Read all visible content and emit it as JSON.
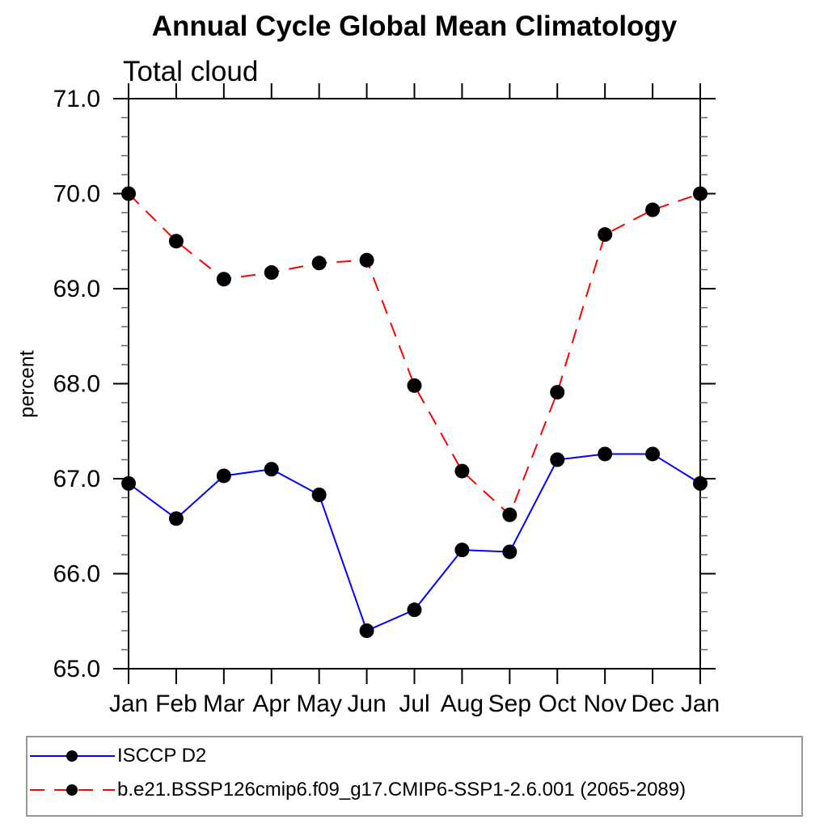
{
  "chart_data": {
    "type": "line",
    "title": "Annual Cycle Global Mean Climatology",
    "subtitle": "Total cloud",
    "ylabel": "percent",
    "x_categories": [
      "Jan",
      "Feb",
      "Mar",
      "Apr",
      "May",
      "Jun",
      "Jul",
      "Aug",
      "Sep",
      "Oct",
      "Nov",
      "Dec",
      "Jan"
    ],
    "ylim": [
      65.0,
      71.0
    ],
    "y_major_tick_labels": [
      "65.0",
      "66.0",
      "67.0",
      "68.0",
      "69.0",
      "70.0",
      "71.0"
    ],
    "y_major_interval": 1.0,
    "y_minor_interval": 0.2,
    "grid": "off",
    "legend_position": "bottom-left-box",
    "marker_color": "#000000",
    "series": [
      {
        "name": "ISCCP D2",
        "color": "#0000ff",
        "style": "solid",
        "marker": "filled-circle",
        "values": [
          66.95,
          66.58,
          67.03,
          67.1,
          66.83,
          65.4,
          65.62,
          66.25,
          66.23,
          67.2,
          67.26,
          67.26,
          66.95
        ]
      },
      {
        "name": "b.e21.BSSP126cmip6.f09_g17.CMIP6-SSP1-2.6.001 (2065-2089)",
        "color": "#ff0000",
        "style": "dashed",
        "marker": "filled-circle",
        "values": [
          70.0,
          69.5,
          69.1,
          69.17,
          69.27,
          69.3,
          67.98,
          67.08,
          66.62,
          67.91,
          69.57,
          69.83,
          70.0
        ]
      }
    ]
  }
}
